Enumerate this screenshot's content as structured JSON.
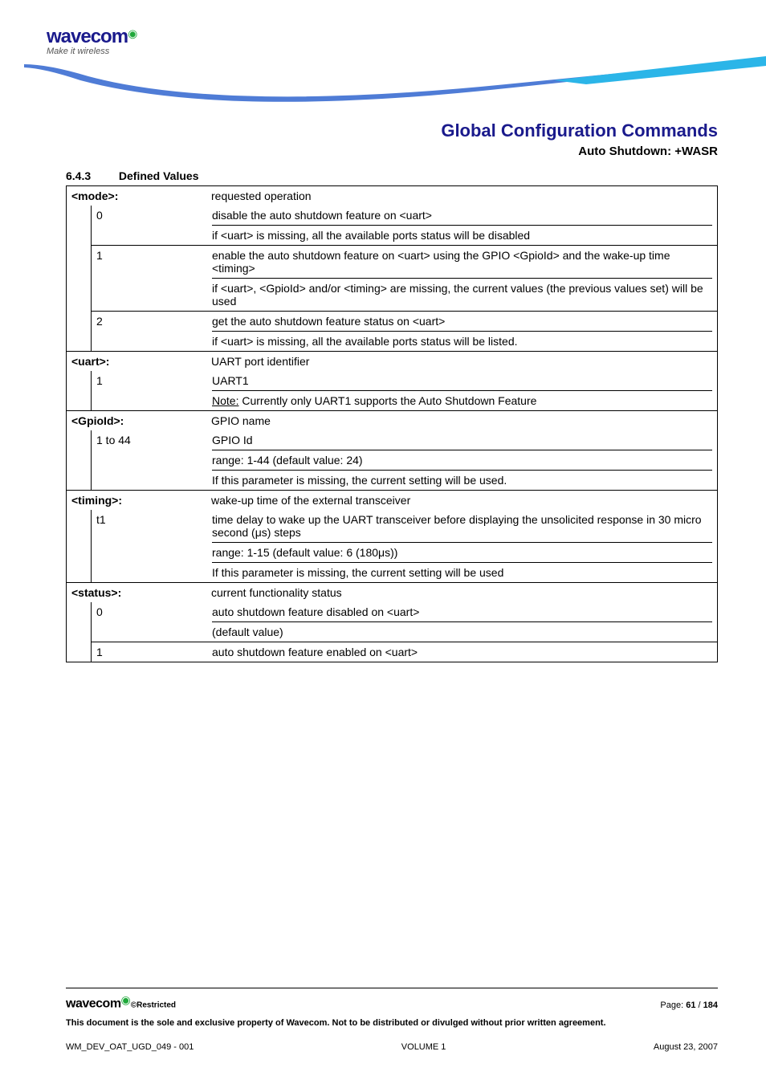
{
  "header": {
    "brand": "wavecom",
    "tagline": "Make it wireless",
    "swoosh_color": "#4f7cd6",
    "highlight_color": "#2bb5e8"
  },
  "titles": {
    "chapter": "Global Configuration Commands",
    "subtitle": "Auto Shutdown: +WASR",
    "section_num": "6.4.3",
    "section_name": "Defined Values"
  },
  "params": [
    {
      "name": "<mode>:",
      "desc": "requested operation",
      "subs": [
        {
          "val": "0",
          "lines": [
            "disable the auto shutdown feature on <uart>",
            "if <uart> is missing, all the available ports status will be disabled"
          ]
        },
        {
          "val": "1",
          "lines": [
            "enable the auto shutdown feature on <uart> using the GPIO <GpioId> and the wake-up time <timing>",
            "if <uart>, <GpioId> and/or <timing> are missing, the current values (the previous values set) will be used"
          ]
        },
        {
          "val": "2",
          "lines": [
            "get the auto shutdown feature status on <uart>",
            "if <uart> is missing, all the available ports status will be listed."
          ]
        }
      ]
    },
    {
      "name": "<uart>:",
      "desc": "UART port identifier",
      "subs": [
        {
          "val": "1",
          "lines": [
            "UART1",
            "<u>Note:</u> Currently only UART1 supports the Auto Shutdown Feature"
          ]
        }
      ]
    },
    {
      "name": "<GpioId>:",
      "desc": "GPIO name",
      "subs": [
        {
          "val": "1 to 44",
          "lines": [
            "GPIO Id",
            "range: 1-44 (default value: 24)",
            "If this parameter is missing, the current setting will be used."
          ]
        }
      ]
    },
    {
      "name": "<timing>:",
      "desc": "wake-up time of the external transceiver",
      "subs": [
        {
          "val": "t1",
          "lines": [
            "time delay to wake up the UART transceiver before displaying the unsolicited response in 30 micro second (μs) steps",
            "range: 1-15 (default value: 6 (180μs))",
            "If this parameter is missing, the current setting will be used"
          ]
        }
      ]
    },
    {
      "name": "<status>:",
      "desc": "current functionality status",
      "subs": [
        {
          "val": "0",
          "lines": [
            "auto shutdown feature disabled on <uart>",
            "(default value)"
          ]
        },
        {
          "val": "1",
          "lines": [
            "auto shutdown feature enabled on <uart>"
          ]
        }
      ]
    }
  ],
  "footer": {
    "brand": "wavecom",
    "restricted": "©Restricted",
    "page_label": "Page: ",
    "page_current": "61",
    "page_sep": " / ",
    "page_total": "184",
    "legal": "This document is the sole and exclusive property of Wavecom. Not to be distributed or divulged without prior written agreement.",
    "doc_id": "WM_DEV_OAT_UGD_049 - 001",
    "volume": "VOLUME 1",
    "date": "August 23, 2007"
  }
}
